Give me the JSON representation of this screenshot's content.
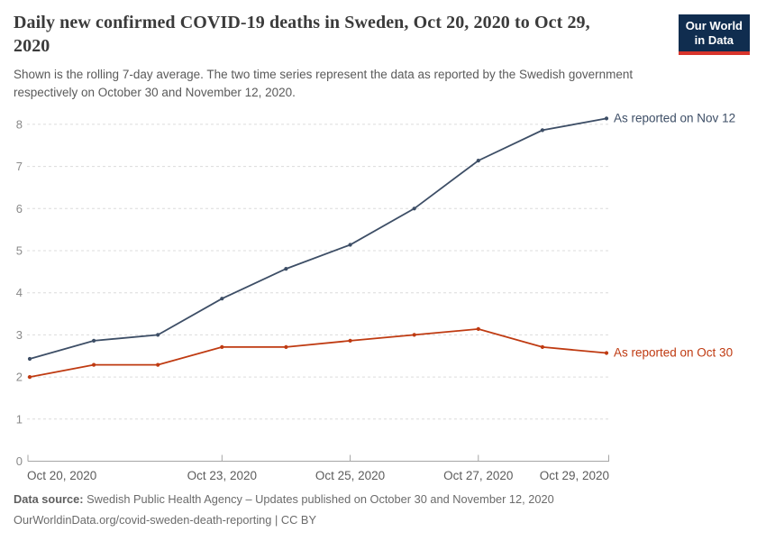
{
  "header": {
    "title": "Daily new confirmed COVID-19 deaths in Sweden, Oct 20, 2020 to Oct 29, 2020",
    "subtitle": "Shown is the rolling 7-day average. The two time series represent the data as reported by the Swedish government respectively on October 30 and November 12, 2020.",
    "logo_line1": "Our World",
    "logo_line2": "in Data",
    "logo_bg_color": "#102d4f",
    "logo_bar_color": "#d8352c"
  },
  "chart_data": {
    "type": "line",
    "title": "Daily new confirmed COVID-19 deaths in Sweden, Oct 20, 2020 to Oct 29, 2020",
    "x": [
      "Oct 20, 2020",
      "Oct 21, 2020",
      "Oct 22, 2020",
      "Oct 23, 2020",
      "Oct 24, 2020",
      "Oct 25, 2020",
      "Oct 26, 2020",
      "Oct 27, 2020",
      "Oct 28, 2020",
      "Oct 29, 2020"
    ],
    "x_ticks": [
      {
        "index": 0,
        "label": "Oct 20, 2020",
        "anchor": "start"
      },
      {
        "index": 3,
        "label": "Oct 23, 2020",
        "anchor": "middle"
      },
      {
        "index": 5,
        "label": "Oct 25, 2020",
        "anchor": "middle"
      },
      {
        "index": 7,
        "label": "Oct 27, 2020",
        "anchor": "middle"
      },
      {
        "index": 9,
        "label": "Oct 29, 2020",
        "anchor": "end"
      }
    ],
    "yticks": [
      0,
      1,
      2,
      3,
      4,
      5,
      6,
      7,
      8
    ],
    "ylim": [
      0,
      8.2
    ],
    "grid": "horizontal-dashed",
    "legend_position": "end-of-line-labels",
    "series": [
      {
        "name": "As reported on Nov 12",
        "color": "#3d4e66",
        "values": [
          2.43,
          2.86,
          3.0,
          3.86,
          4.57,
          5.14,
          6.0,
          7.14,
          7.86,
          8.14
        ]
      },
      {
        "name": "As reported on Oct 30",
        "color": "#bf3a11",
        "values": [
          2.0,
          2.29,
          2.29,
          2.71,
          2.71,
          2.86,
          3.0,
          3.14,
          2.71,
          2.57
        ]
      }
    ]
  },
  "footer": {
    "source_label": "Data source:",
    "source_text": "Swedish Public Health Agency – Updates published on October 30 and November 12, 2020",
    "url": "OurWorldinData.org/covid-sweden-death-reporting",
    "license": "| CC BY"
  }
}
